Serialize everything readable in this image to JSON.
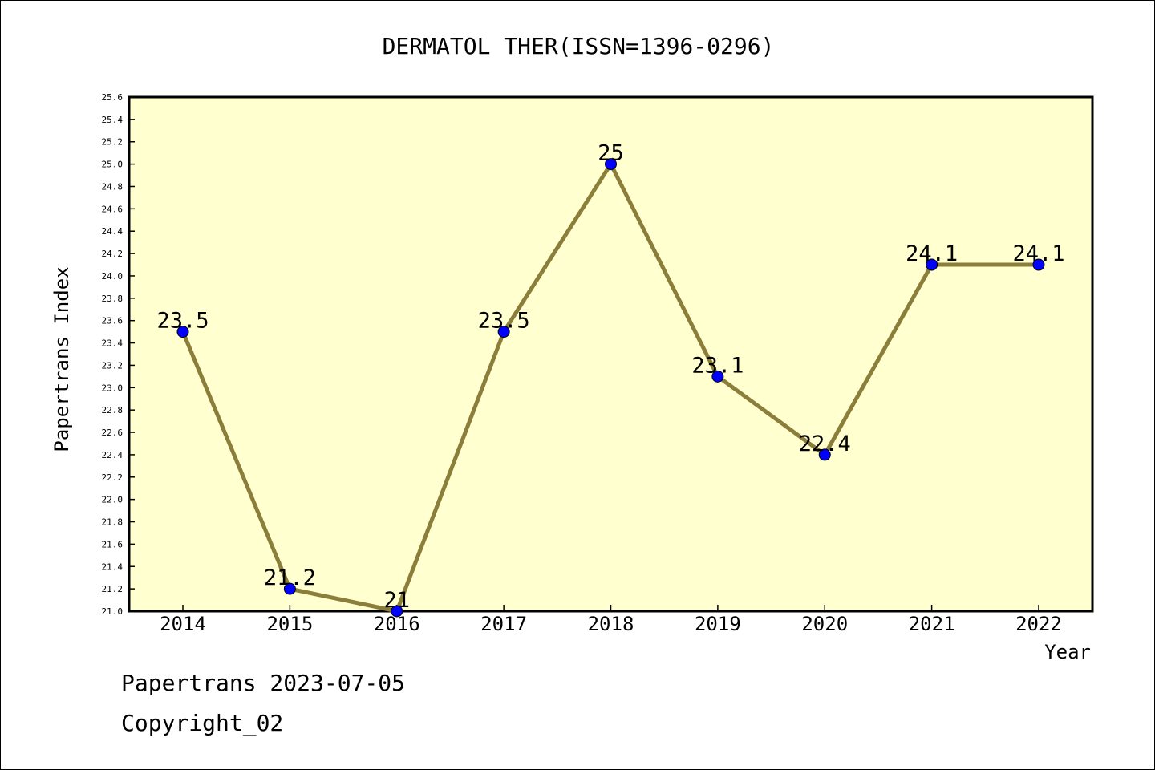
{
  "chart_data": {
    "type": "line",
    "title": "DERMATOL THER(ISSN=1396-0296)",
    "xlabel": "Year",
    "ylabel": "Papertrans Index",
    "categories": [
      "2014",
      "2015",
      "2016",
      "2017",
      "2018",
      "2019",
      "2020",
      "2021",
      "2022"
    ],
    "series": [
      {
        "values": [
          23.5,
          21.2,
          21,
          23.5,
          25,
          23.1,
          22.4,
          24.1,
          24.1
        ]
      }
    ],
    "data_labels": [
      "23.5",
      "21.2",
      "21",
      "23.5",
      "25",
      "23.1",
      "22.4",
      "24.1",
      "24.1"
    ],
    "ylim": [
      21.0,
      25.6
    ],
    "yticks": [
      "21.0",
      "21.2",
      "21.4",
      "21.6",
      "21.8",
      "22.0",
      "22.2",
      "22.4",
      "22.6",
      "22.8",
      "23.0",
      "23.2",
      "23.4",
      "23.6",
      "23.8",
      "24.0",
      "24.2",
      "24.4",
      "24.6",
      "24.8",
      "25.0",
      "25.2",
      "25.4",
      "25.6"
    ],
    "grid": false,
    "colors": {
      "plot_background": "#ffffd0",
      "line": "#8b7d3a",
      "marker": "#0000ff"
    }
  },
  "footer": {
    "line1": "Papertrans 2023-07-05",
    "line2": "Copyright_02"
  }
}
